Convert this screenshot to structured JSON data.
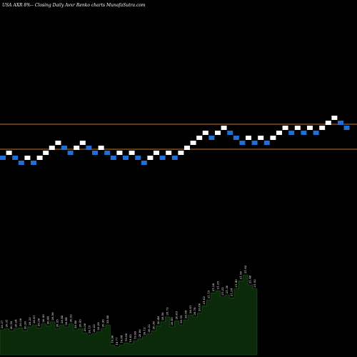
{
  "header": {
    "symbol_text": "USA AXR 8%-- ",
    "subtitle_text": "Closing Daily Avxr Renko charts MunafaSutra.com"
  },
  "colors": {
    "background": "#000000",
    "brick_up": "#ffffff",
    "brick_down": "#1f6fd6",
    "support_line": "#c07a2c",
    "volume_fill": "#0a2a0a",
    "volume_line": "#1e5c1e"
  },
  "chart_data": {
    "type": "renko",
    "bricks": [
      {
        "dir": "down",
        "level": 0
      },
      {
        "dir": "up",
        "level": 1
      },
      {
        "dir": "down",
        "level": 0
      },
      {
        "dir": "down",
        "level": -1
      },
      {
        "dir": "up",
        "level": 0
      },
      {
        "dir": "down",
        "level": -1
      },
      {
        "dir": "up",
        "level": 0
      },
      {
        "dir": "up",
        "level": 1
      },
      {
        "dir": "up",
        "level": 2
      },
      {
        "dir": "up",
        "level": 3
      },
      {
        "dir": "down",
        "level": 2
      },
      {
        "dir": "down",
        "level": 1
      },
      {
        "dir": "up",
        "level": 2
      },
      {
        "dir": "up",
        "level": 3
      },
      {
        "dir": "down",
        "level": 2
      },
      {
        "dir": "down",
        "level": 1
      },
      {
        "dir": "up",
        "level": 2
      },
      {
        "dir": "down",
        "level": 1
      },
      {
        "dir": "down",
        "level": 0
      },
      {
        "dir": "up",
        "level": 1
      },
      {
        "dir": "down",
        "level": 0
      },
      {
        "dir": "up",
        "level": 1
      },
      {
        "dir": "down",
        "level": 0
      },
      {
        "dir": "down",
        "level": -1
      },
      {
        "dir": "up",
        "level": 0
      },
      {
        "dir": "up",
        "level": 1
      },
      {
        "dir": "down",
        "level": 0
      },
      {
        "dir": "up",
        "level": 1
      },
      {
        "dir": "down",
        "level": 0
      },
      {
        "dir": "up",
        "level": 1
      },
      {
        "dir": "up",
        "level": 2
      },
      {
        "dir": "up",
        "level": 3
      },
      {
        "dir": "up",
        "level": 4
      },
      {
        "dir": "up",
        "level": 5
      },
      {
        "dir": "down",
        "level": 4
      },
      {
        "dir": "up",
        "level": 5
      },
      {
        "dir": "up",
        "level": 6
      },
      {
        "dir": "down",
        "level": 5
      },
      {
        "dir": "down",
        "level": 4
      },
      {
        "dir": "down",
        "level": 3
      },
      {
        "dir": "up",
        "level": 4
      },
      {
        "dir": "down",
        "level": 3
      },
      {
        "dir": "up",
        "level": 4
      },
      {
        "dir": "down",
        "level": 3
      },
      {
        "dir": "up",
        "level": 4
      },
      {
        "dir": "up",
        "level": 5
      },
      {
        "dir": "up",
        "level": 6
      },
      {
        "dir": "down",
        "level": 5
      },
      {
        "dir": "up",
        "level": 6
      },
      {
        "dir": "down",
        "level": 5
      },
      {
        "dir": "up",
        "level": 6
      },
      {
        "dir": "down",
        "level": 5
      },
      {
        "dir": "up",
        "level": 6
      },
      {
        "dir": "up",
        "level": 7
      },
      {
        "dir": "up",
        "level": 8
      },
      {
        "dir": "down",
        "level": 7
      },
      {
        "dir": "down",
        "level": 6
      }
    ],
    "horizontal_lines": [
      7,
      2
    ],
    "volume_labels": [
      "20.27",
      "20.31",
      "20.18",
      "20.24",
      "20.30",
      "20.20",
      "20.33",
      "20.41",
      "20.36",
      "20.50",
      "20.44",
      "20.58",
      "20.35",
      "20.48",
      "20.44",
      "20.52",
      "20.40",
      "20.43",
      "20.30",
      "20.15",
      "20.22",
      "20.29",
      "20.36",
      "20.48",
      "19.96",
      "19.77",
      "19.84",
      "19.90",
      "19.82",
      "19.99",
      "20.06",
      "20.12",
      "20.22",
      "20.30",
      "20.48",
      "20.56",
      "20.72",
      "20.45",
      "20.63",
      "20.55",
      "20.69",
      "20.81",
      "20.78",
      "20.86",
      "21.02",
      "21.15",
      "21.28",
      "21.35",
      "21.22",
      "21.30",
      "21.24",
      "21.40",
      "21.56",
      "21.62",
      "21.48",
      "21.52"
    ],
    "volume": [
      0.25,
      0.26,
      0.24,
      0.26,
      0.27,
      0.24,
      0.28,
      0.3,
      0.27,
      0.31,
      0.29,
      0.33,
      0.26,
      0.3,
      0.28,
      0.31,
      0.25,
      0.26,
      0.22,
      0.2,
      0.21,
      0.23,
      0.26,
      0.3,
      0.1,
      0.08,
      0.1,
      0.12,
      0.11,
      0.14,
      0.16,
      0.18,
      0.21,
      0.24,
      0.29,
      0.33,
      0.38,
      0.28,
      0.34,
      0.3,
      0.35,
      0.4,
      0.38,
      0.42,
      0.49,
      0.55,
      0.62,
      0.64,
      0.58,
      0.6,
      0.57,
      0.66,
      0.74,
      0.8,
      0.7,
      0.66
    ]
  }
}
